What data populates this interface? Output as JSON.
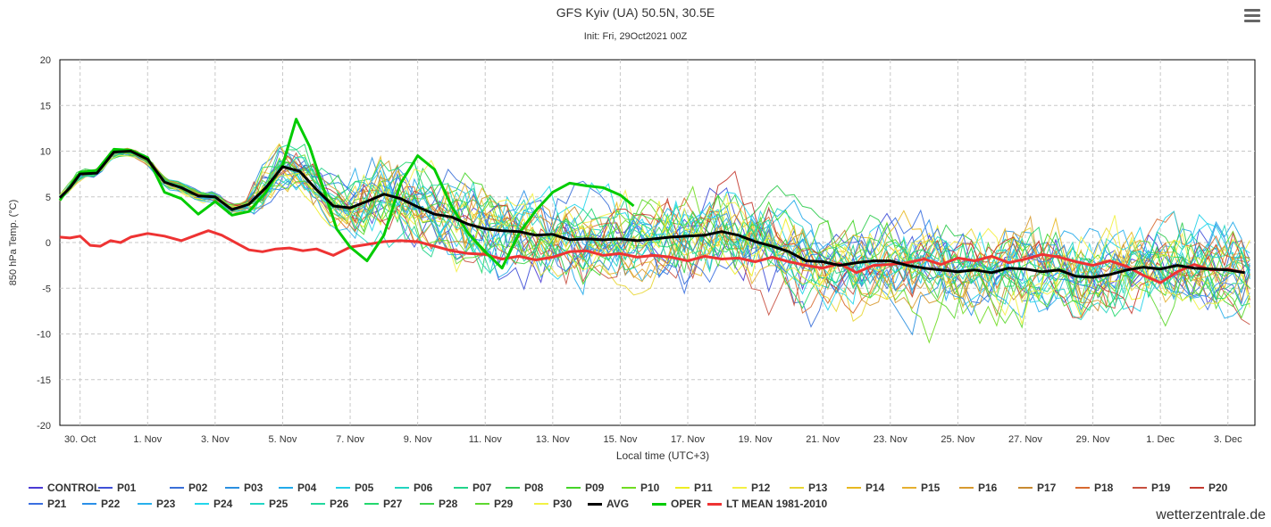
{
  "chart_data": {
    "type": "line",
    "title": "GFS Kyiv (UA) 50.5N, 30.5E",
    "subtitle": "Init: Fri, 29Oct2021 00Z",
    "xlabel": "Local time (UTC+3)",
    "ylabel": "850 hPa Temp. (°C)",
    "ylim": [
      -20,
      20
    ],
    "yticks": [
      20,
      15,
      10,
      5,
      0,
      -5,
      -10,
      -15,
      -20
    ],
    "xlim_day": [
      -0.6,
      34.8
    ],
    "x_ticks": [
      {
        "day": 0,
        "label": "30. Oct"
      },
      {
        "day": 2,
        "label": "1. Nov"
      },
      {
        "day": 4,
        "label": "3. Nov"
      },
      {
        "day": 6,
        "label": "5. Nov"
      },
      {
        "day": 8,
        "label": "7. Nov"
      },
      {
        "day": 10,
        "label": "9. Nov"
      },
      {
        "day": 12,
        "label": "11. Nov"
      },
      {
        "day": 14,
        "label": "13. Nov"
      },
      {
        "day": 16,
        "label": "15. Nov"
      },
      {
        "day": 18,
        "label": "17. Nov"
      },
      {
        "day": 20,
        "label": "19. Nov"
      },
      {
        "day": 22,
        "label": "21. Nov"
      },
      {
        "day": 24,
        "label": "23. Nov"
      },
      {
        "day": 26,
        "label": "25. Nov"
      },
      {
        "day": 28,
        "label": "27. Nov"
      },
      {
        "day": 30,
        "label": "29. Nov"
      },
      {
        "day": 32,
        "label": "1. Dec"
      },
      {
        "day": 34,
        "label": "3. Dec"
      }
    ],
    "grid": true,
    "legend_position": "bottom",
    "main_series": {
      "AVG": {
        "color": "#000000",
        "points": [
          [
            -0.6,
            4.9
          ],
          [
            -0.3,
            6.0
          ],
          [
            0,
            7.5
          ],
          [
            0.5,
            7.6
          ],
          [
            1,
            9.9
          ],
          [
            1.5,
            10.0
          ],
          [
            2,
            9.1
          ],
          [
            2.5,
            6.6
          ],
          [
            3,
            6.0
          ],
          [
            3.5,
            5.1
          ],
          [
            4,
            5.0
          ],
          [
            4.5,
            3.6
          ],
          [
            5,
            4.2
          ],
          [
            5.5,
            6.0
          ],
          [
            6,
            8.3
          ],
          [
            6.5,
            7.8
          ],
          [
            7,
            5.8
          ],
          [
            7.5,
            4.0
          ],
          [
            8,
            3.8
          ],
          [
            8.5,
            4.5
          ],
          [
            9,
            5.3
          ],
          [
            9.5,
            4.8
          ],
          [
            10,
            3.9
          ],
          [
            10.5,
            3.1
          ],
          [
            11,
            2.8
          ],
          [
            11.5,
            2.0
          ],
          [
            12,
            1.5
          ],
          [
            12.5,
            1.3
          ],
          [
            13,
            1.2
          ],
          [
            13.5,
            0.8
          ],
          [
            14,
            0.9
          ],
          [
            14.5,
            0.3
          ],
          [
            15,
            0.4
          ],
          [
            15.5,
            0.3
          ],
          [
            16,
            0.4
          ],
          [
            16.5,
            0.2
          ],
          [
            17,
            0.4
          ],
          [
            17.5,
            0.6
          ],
          [
            18,
            0.7
          ],
          [
            18.5,
            0.8
          ],
          [
            19,
            1.2
          ],
          [
            19.5,
            0.8
          ],
          [
            20,
            0.1
          ],
          [
            20.5,
            -0.4
          ],
          [
            21,
            -1.0
          ],
          [
            21.5,
            -2.0
          ],
          [
            22,
            -2.1
          ],
          [
            22.5,
            -2.5
          ],
          [
            23,
            -2.2
          ],
          [
            23.5,
            -2.0
          ],
          [
            24,
            -2.0
          ],
          [
            24.5,
            -2.5
          ],
          [
            25,
            -2.8
          ],
          [
            25.5,
            -3.0
          ],
          [
            26,
            -3.2
          ],
          [
            26.5,
            -3.0
          ],
          [
            27,
            -3.3
          ],
          [
            27.5,
            -2.8
          ],
          [
            28,
            -2.9
          ],
          [
            28.5,
            -3.2
          ],
          [
            29,
            -3.0
          ],
          [
            29.5,
            -3.7
          ],
          [
            30,
            -3.8
          ],
          [
            30.5,
            -3.5
          ],
          [
            31,
            -3.0
          ],
          [
            31.5,
            -2.7
          ],
          [
            32,
            -2.9
          ],
          [
            32.5,
            -2.5
          ],
          [
            33,
            -2.8
          ],
          [
            33.5,
            -2.9
          ],
          [
            34,
            -3.0
          ],
          [
            34.5,
            -3.3
          ]
        ]
      },
      "OPER": {
        "color": "#00cc00",
        "points": [
          [
            -0.6,
            4.6
          ],
          [
            0,
            7.7
          ],
          [
            0.5,
            7.9
          ],
          [
            1,
            10.2
          ],
          [
            1.5,
            10.1
          ],
          [
            2,
            9.3
          ],
          [
            2.5,
            5.5
          ],
          [
            3,
            4.8
          ],
          [
            3.5,
            3.1
          ],
          [
            4,
            4.5
          ],
          [
            4.5,
            3.0
          ],
          [
            5,
            3.4
          ],
          [
            5.5,
            5.5
          ],
          [
            6,
            8.5
          ],
          [
            6.4,
            13.5
          ],
          [
            6.8,
            10.5
          ],
          [
            7.2,
            6.0
          ],
          [
            7.6,
            1.5
          ],
          [
            8,
            -0.5
          ],
          [
            8.5,
            -2.0
          ],
          [
            9,
            0.8
          ],
          [
            9.5,
            6.5
          ],
          [
            10,
            9.5
          ],
          [
            10.5,
            8.0
          ],
          [
            11,
            4.0
          ],
          [
            11.5,
            1.0
          ],
          [
            12,
            -1.0
          ],
          [
            12.5,
            -2.8
          ],
          [
            13,
            1.0
          ],
          [
            13.5,
            3.5
          ],
          [
            14,
            5.5
          ],
          [
            14.5,
            6.5
          ],
          [
            15,
            6.2
          ],
          [
            15.5,
            6.0
          ],
          [
            16,
            5.2
          ],
          [
            16.4,
            4.0
          ]
        ]
      },
      "LT MEAN 1981-2010": {
        "color": "#ee3333",
        "points": [
          [
            -0.6,
            0.6
          ],
          [
            -0.3,
            0.5
          ],
          [
            0,
            0.7
          ],
          [
            0.3,
            -0.3
          ],
          [
            0.6,
            -0.4
          ],
          [
            0.9,
            0.2
          ],
          [
            1.2,
            0.0
          ],
          [
            1.5,
            0.6
          ],
          [
            2,
            1.0
          ],
          [
            2.5,
            0.7
          ],
          [
            3,
            0.2
          ],
          [
            3.5,
            0.9
          ],
          [
            3.8,
            1.3
          ],
          [
            4.2,
            0.8
          ],
          [
            4.7,
            -0.2
          ],
          [
            5,
            -0.8
          ],
          [
            5.4,
            -1.0
          ],
          [
            5.8,
            -0.7
          ],
          [
            6.2,
            -0.6
          ],
          [
            6.6,
            -0.9
          ],
          [
            7,
            -0.7
          ],
          [
            7.5,
            -1.4
          ],
          [
            8,
            -0.5
          ],
          [
            8.5,
            -0.2
          ],
          [
            9,
            0.1
          ],
          [
            9.5,
            0.2
          ],
          [
            10,
            0.1
          ],
          [
            10.5,
            -0.4
          ],
          [
            11,
            -0.9
          ],
          [
            11.5,
            -1.2
          ],
          [
            12,
            -1.3
          ],
          [
            12.5,
            -1.8
          ],
          [
            13,
            -1.5
          ],
          [
            13.5,
            -1.9
          ],
          [
            14,
            -1.6
          ],
          [
            14.5,
            -1.0
          ],
          [
            15,
            -0.9
          ],
          [
            15.5,
            -1.4
          ],
          [
            16,
            -1.2
          ],
          [
            16.5,
            -1.6
          ],
          [
            17,
            -1.4
          ],
          [
            17.5,
            -1.6
          ],
          [
            18,
            -2.0
          ],
          [
            18.5,
            -1.5
          ],
          [
            19,
            -1.8
          ],
          [
            19.5,
            -1.7
          ],
          [
            20,
            -2.1
          ],
          [
            20.5,
            -1.6
          ],
          [
            21,
            -2.1
          ],
          [
            21.5,
            -2.5
          ],
          [
            22,
            -2.8
          ],
          [
            22.5,
            -2.3
          ],
          [
            23,
            -3.3
          ],
          [
            23.5,
            -2.5
          ],
          [
            24,
            -2.4
          ],
          [
            24.5,
            -2.2
          ],
          [
            25,
            -1.8
          ],
          [
            25.5,
            -2.4
          ],
          [
            26,
            -1.7
          ],
          [
            26.5,
            -2.0
          ],
          [
            27,
            -1.5
          ],
          [
            27.5,
            -2.2
          ],
          [
            28,
            -1.8
          ],
          [
            28.5,
            -1.3
          ],
          [
            29,
            -1.6
          ],
          [
            29.5,
            -2.1
          ],
          [
            30,
            -2.5
          ],
          [
            30.5,
            -2.0
          ],
          [
            31,
            -2.6
          ],
          [
            31.5,
            -3.6
          ],
          [
            32,
            -4.4
          ],
          [
            32.5,
            -3.2
          ],
          [
            33,
            -2.4
          ],
          [
            33.5,
            -3.0
          ],
          [
            34,
            -2.9
          ],
          [
            34.5,
            -3.3
          ]
        ]
      }
    },
    "legend": [
      {
        "name": "CONTROL",
        "color": "#4b3bd4"
      },
      {
        "name": "P01",
        "color": "#4050d8"
      },
      {
        "name": "P02",
        "color": "#3a6fd8"
      },
      {
        "name": "P03",
        "color": "#2a8fe0"
      },
      {
        "name": "P04",
        "color": "#22aaea"
      },
      {
        "name": "P05",
        "color": "#22d0e8"
      },
      {
        "name": "P06",
        "color": "#22d4c0"
      },
      {
        "name": "P07",
        "color": "#22d48a"
      },
      {
        "name": "P08",
        "color": "#30cc50"
      },
      {
        "name": "P09",
        "color": "#44d428"
      },
      {
        "name": "P10",
        "color": "#70dc22"
      },
      {
        "name": "P11",
        "color": "#eeee22"
      },
      {
        "name": "P12",
        "color": "#f4f044"
      },
      {
        "name": "P13",
        "color": "#e8d633"
      },
      {
        "name": "P14",
        "color": "#e8b820"
      },
      {
        "name": "P15",
        "color": "#e6b030"
      },
      {
        "name": "P16",
        "color": "#d89a30"
      },
      {
        "name": "P17",
        "color": "#c88a32"
      },
      {
        "name": "P18",
        "color": "#d86a30"
      },
      {
        "name": "P19",
        "color": "#c85040"
      },
      {
        "name": "P20",
        "color": "#c43a30"
      },
      {
        "name": "P21",
        "color": "#3a6fe0"
      },
      {
        "name": "P22",
        "color": "#2a8fe8"
      },
      {
        "name": "P23",
        "color": "#28b0ec"
      },
      {
        "name": "P24",
        "color": "#22d6ec"
      },
      {
        "name": "P25",
        "color": "#22d6c6"
      },
      {
        "name": "P26",
        "color": "#22d89e"
      },
      {
        "name": "P27",
        "color": "#22d86e"
      },
      {
        "name": "P28",
        "color": "#3cd448"
      },
      {
        "name": "P29",
        "color": "#5ed830"
      },
      {
        "name": "P30",
        "color": "#f2f244"
      },
      {
        "name": "AVG",
        "color": "#000000"
      },
      {
        "name": "OPER",
        "color": "#00cc00"
      },
      {
        "name": "LT MEAN 1981-2010",
        "color": "#ee3333"
      }
    ]
  },
  "menu": {
    "icon": "hamburger-menu-icon"
  },
  "credits": "wetterzentrale.de"
}
